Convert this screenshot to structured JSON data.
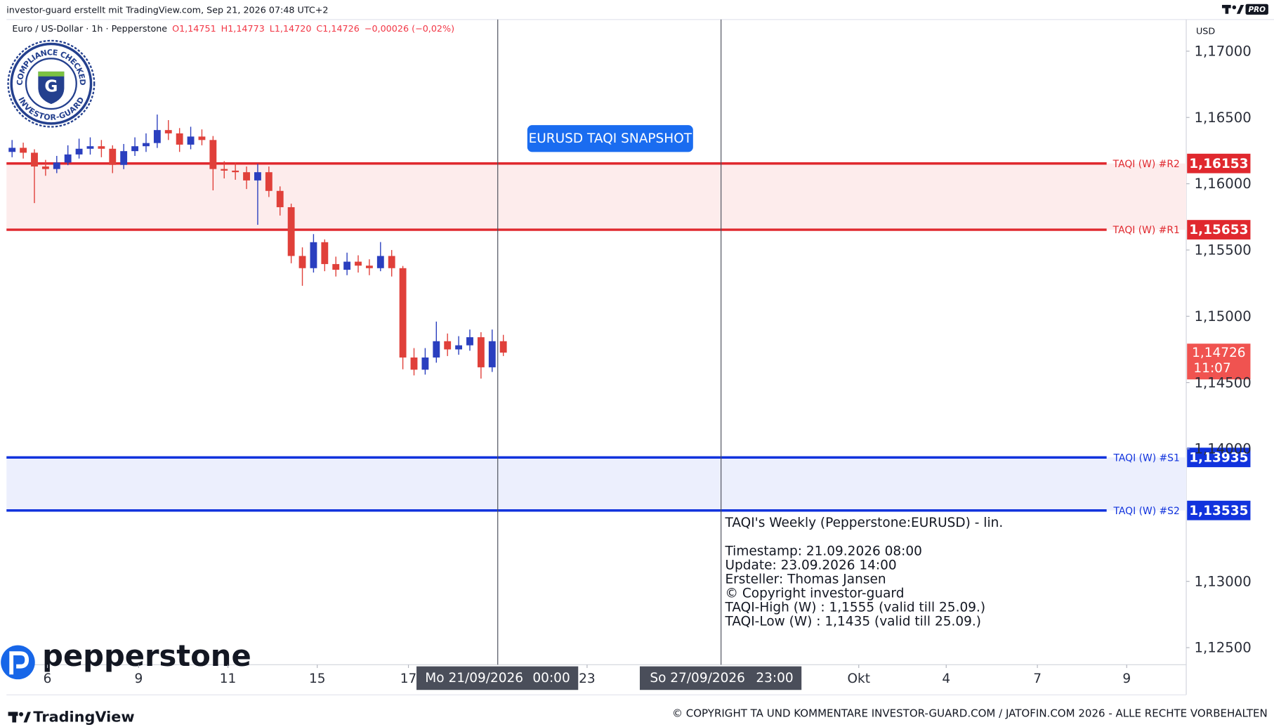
{
  "header": {
    "credit": "investor-guard erstellt mit TradingView.com, Sep 21, 2026 07:48 UTC+2",
    "pro": "PRO"
  },
  "chart_data": {
    "type": "candlestick",
    "symbol": "Euro / US-Dollar · 1h · Pepperstone",
    "legend_items": [
      "O1,14751",
      "H1,14773",
      "L1,14720",
      "C1,14726",
      "−0,00026 (−0,02%)"
    ],
    "legend_color": "#f23645",
    "x": [
      -261,
      -255,
      -249,
      -243,
      -237,
      -231,
      -225,
      -219,
      -213,
      -207,
      -201,
      -195,
      -189,
      -183,
      -177,
      -171,
      -165,
      -159,
      -153,
      -147,
      -141,
      -135,
      -129,
      -123,
      -117,
      -111,
      -105,
      -99,
      -93,
      -87,
      -81,
      -75,
      -69,
      -63,
      -57,
      -51,
      -45,
      -39,
      -33,
      -27,
      -21,
      -15,
      -9,
      -3,
      3
    ],
    "open": [
      1.1624,
      1.16271,
      1.16234,
      1.1613,
      1.16111,
      1.1616,
      1.16221,
      1.16264,
      1.16283,
      1.16264,
      1.16142,
      1.16246,
      1.16283,
      1.16307,
      1.16405,
      1.1638,
      1.16295,
      1.16356,
      1.1633,
      1.16111,
      1.16099,
      1.16087,
      1.16025,
      1.16087,
      1.15946,
      1.15823,
      1.15455,
      1.15363,
      1.15559,
      1.15394,
      1.15351,
      1.15412,
      1.15382,
      1.15363,
      1.15455,
      1.15363,
      1.14689,
      1.14597,
      1.14689,
      1.14812,
      1.1475,
      1.14781,
      1.14842,
      1.14615,
      1.14812
    ],
    "high": [
      1.1633,
      1.1631,
      1.1626,
      1.1618,
      1.1621,
      1.1629,
      1.1634,
      1.1635,
      1.1633,
      1.1629,
      1.163,
      1.1635,
      1.1638,
      1.16522,
      1.1648,
      1.1642,
      1.1643,
      1.1641,
      1.1636,
      1.1617,
      1.1616,
      1.1613,
      1.1615,
      1.1613,
      1.1598,
      1.1585,
      1.1552,
      1.1562,
      1.1558,
      1.1545,
      1.1548,
      1.1546,
      1.1543,
      1.1556,
      1.155,
      1.1538,
      1.1476,
      1.1476,
      1.1496,
      1.1487,
      1.1485,
      1.149,
      1.1488,
      1.149,
      1.1486
    ],
    "low": [
      1.162,
      1.1619,
      1.15854,
      1.1606,
      1.1608,
      1.1614,
      1.1619,
      1.1622,
      1.162,
      1.1608,
      1.1611,
      1.1621,
      1.1624,
      1.1627,
      1.1633,
      1.1624,
      1.1626,
      1.1629,
      1.1595,
      1.1604,
      1.1603,
      1.1596,
      1.1569,
      1.159,
      1.1576,
      1.154,
      1.1523,
      1.1533,
      1.1534,
      1.153,
      1.1531,
      1.1533,
      1.1531,
      1.1534,
      1.153,
      1.146,
      1.14554,
      1.1456,
      1.1465,
      1.147,
      1.1471,
      1.1474,
      1.1453,
      1.1458,
      1.147
    ],
    "close": [
      1.16271,
      1.16234,
      1.1613,
      1.16111,
      1.1616,
      1.16221,
      1.16264,
      1.16283,
      1.16264,
      1.16142,
      1.16246,
      1.16283,
      1.16307,
      1.16405,
      1.1638,
      1.16295,
      1.16356,
      1.1633,
      1.16111,
      1.16099,
      1.16087,
      1.16025,
      1.16087,
      1.15946,
      1.15823,
      1.15455,
      1.15363,
      1.15559,
      1.15394,
      1.15351,
      1.15412,
      1.15382,
      1.15363,
      1.15455,
      1.15363,
      1.14689,
      1.14597,
      1.14689,
      1.14812,
      1.1475,
      1.14781,
      1.14842,
      1.14615,
      1.14812,
      1.14726
    ],
    "up_color": "#2a3fbf",
    "down_color": "#e0403a",
    "xlim": [
      -264,
      370
    ],
    "xticks": [
      {
        "value": -242,
        "label": "6"
      },
      {
        "value": -193,
        "label": "9"
      },
      {
        "value": -145,
        "label": "11"
      },
      {
        "value": -97,
        "label": "15"
      },
      {
        "value": -48,
        "label": "17"
      },
      {
        "value": 48,
        "label": "23"
      },
      {
        "value": 194,
        "label": "Okt"
      },
      {
        "value": 241,
        "label": "4"
      },
      {
        "value": 290,
        "label": "7"
      },
      {
        "value": 338,
        "label": "9"
      }
    ],
    "ylim": [
      1.12371,
      1.17239
    ],
    "yticks": [
      {
        "value": 1.17,
        "label": "1,17000"
      },
      {
        "value": 1.165,
        "label": "1,16500"
      },
      {
        "value": 1.16,
        "label": "1,16000"
      },
      {
        "value": 1.155,
        "label": "1,15500"
      },
      {
        "value": 1.15,
        "label": "1,15000"
      },
      {
        "value": 1.145,
        "label": "1,14500"
      },
      {
        "value": 1.14,
        "label": "1,14000"
      },
      {
        "value": 1.13,
        "label": "1,13000"
      },
      {
        "value": 1.125,
        "label": "1,12500"
      }
    ],
    "y_axis_unit": "USD",
    "grid": false,
    "zones": [
      {
        "color": "#fdecec",
        "levels": [
          {
            "name": "TAQI (W) #R2",
            "value": 1.16153,
            "label": "1,16153",
            "color": "#e0282e"
          },
          {
            "name": "TAQI (W) #R1",
            "value": 1.15653,
            "label": "1,15653",
            "color": "#e0282e"
          }
        ]
      },
      {
        "color": "#eceffd",
        "levels": [
          {
            "name": "TAQI (W) #S1",
            "value": 1.13935,
            "label": "1,13935",
            "color": "#1133dd"
          },
          {
            "name": "TAQI (W) #S2",
            "value": 1.13535,
            "label": "1,13535",
            "color": "#1133dd"
          }
        ]
      }
    ],
    "last_price": {
      "value": 1.14726,
      "label": "1,14726",
      "countdown": "11:07",
      "color": "#f05350"
    },
    "markers": [
      {
        "x": 0,
        "label": "Mo 21/09/2026",
        "time": "00:00"
      },
      {
        "x": 120,
        "label": "So 27/09/2026",
        "time": "23:00"
      }
    ],
    "button": "EURUSD TAQI SNAPSHOT",
    "info": {
      "title": "TAQI's Weekly (Pepperstone:EURUSD) - lin.",
      "lines": [
        "Timestamp: 21.09.2026 08:00",
        "Update: 23.09.2026 14:00",
        "Ersteller: Thomas Jansen",
        "© Copyright investor-guard",
        "TAQI-High (W) : 1,1555 (valid till 25.09.)",
        "TAQI-Low (W) : 1,1435 (valid till 25.09.)"
      ]
    }
  },
  "branding": {
    "badge_top": "COMPLIANCE CHECKED",
    "badge_bottom": "INVESTOR-GUARD",
    "badge_letter": "G",
    "broker": "pepperstone",
    "platform": "TradingView",
    "copyright": "© COPYRIGHT TA UND KOMMENTARE INVESTOR-GUARD.COM / JATOFIN.COM 2026 - ALLE RECHTE VORBEHALTEN"
  }
}
